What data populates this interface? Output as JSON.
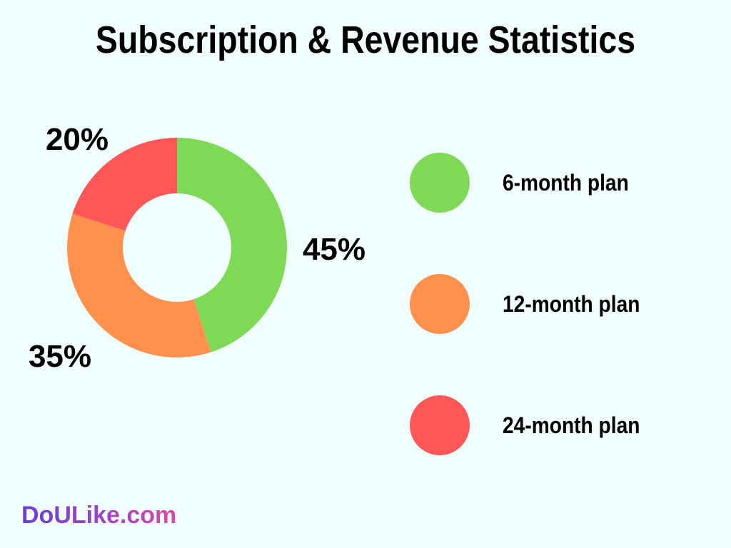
{
  "colors": {
    "background": "#f0fffd",
    "six_month": "#7ed957",
    "twelve_month": "#ff914d",
    "twenty_four_month": "#ff5757"
  },
  "chart_data": {
    "type": "pie",
    "title": "Subscription & Revenue Statistics",
    "donut": true,
    "legend_position": "right",
    "slices": [
      {
        "label": "6-month plan",
        "value": 45,
        "value_label": "45%",
        "color": "#7ed957"
      },
      {
        "label": "12-month plan",
        "value": 35,
        "value_label": "35%",
        "color": "#ff914d"
      },
      {
        "label": "24-month plan",
        "value": 20,
        "value_label": "20%",
        "color": "#ff5757"
      }
    ]
  },
  "brand": {
    "text": "DoULike.com"
  }
}
